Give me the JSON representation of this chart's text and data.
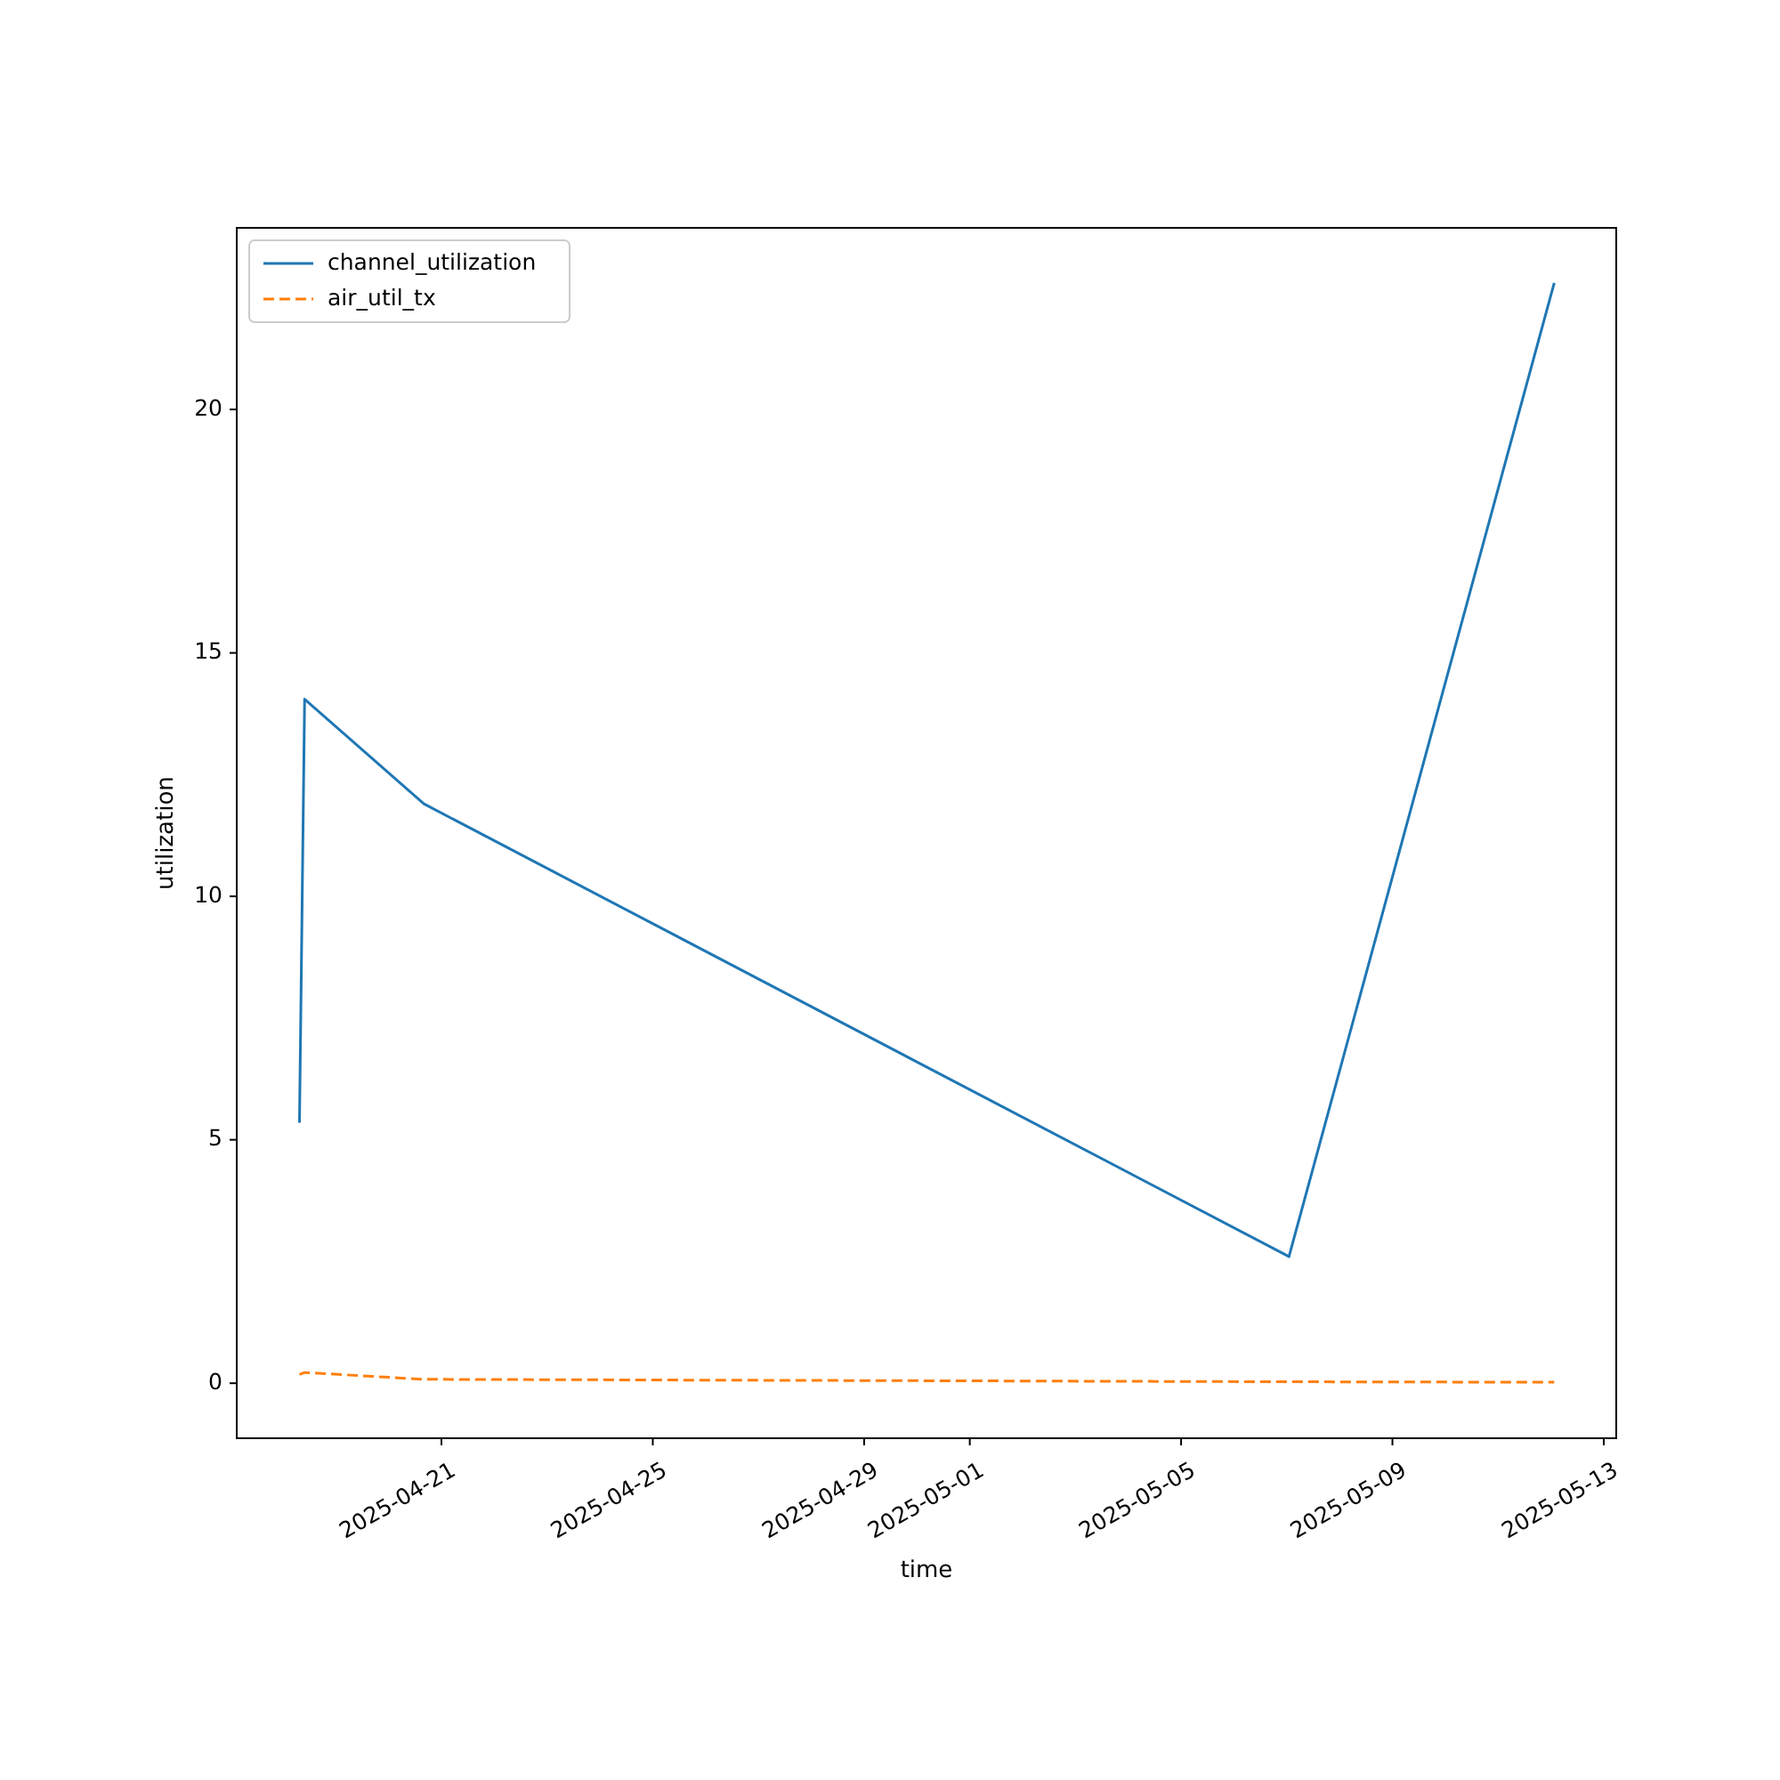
{
  "chart_data": {
    "type": "line",
    "xlabel": "time",
    "ylabel": "utilization",
    "x": [
      "2025-04-18T07:30",
      "2025-04-18T09:50",
      "2025-04-20T16:00",
      "2025-05-07T01:00",
      "2025-05-12T01:30"
    ],
    "series": [
      {
        "name": "channel_utilization",
        "color": "#1f77b4",
        "line_style": "solid",
        "values": [
          5.35,
          14.05,
          11.9,
          2.6,
          22.6
        ]
      },
      {
        "name": "air_util_tx",
        "color": "#ff7f0e",
        "line_style": "dashed",
        "values": [
          0.18,
          0.22,
          0.08,
          0.03,
          0.02
        ]
      }
    ],
    "xlim": [
      "2025-04-17T03:00",
      "2025-05-13T05:40"
    ],
    "xticks": [
      "2025-04-21",
      "2025-04-25",
      "2025-04-29",
      "2025-05-01",
      "2025-05-05",
      "2025-05-09",
      "2025-05-13"
    ],
    "ylim": [
      -1.13,
      23.73
    ],
    "yticks": [
      0,
      5,
      10,
      15,
      20
    ],
    "legend": "top left",
    "grid": false
  }
}
